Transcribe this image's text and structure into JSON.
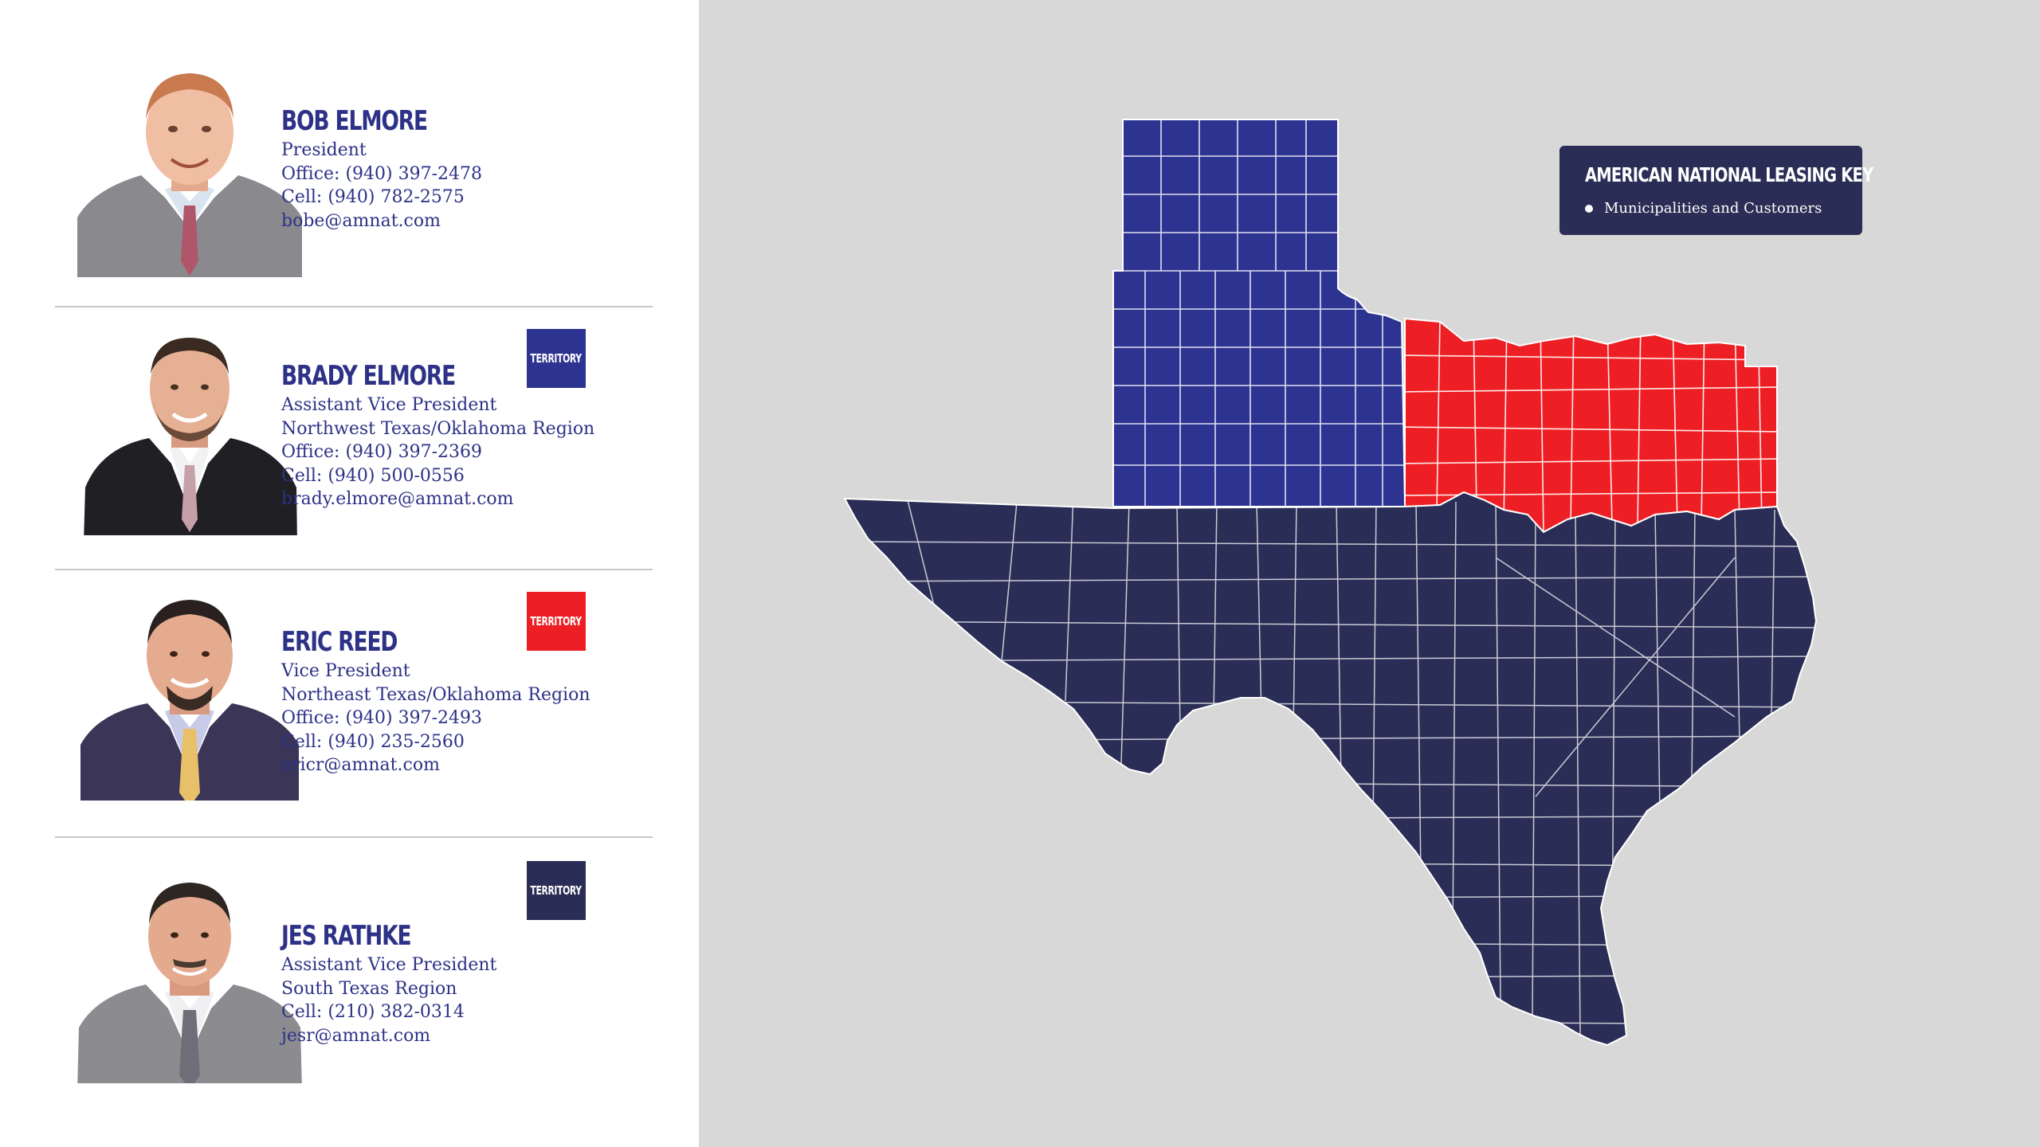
{
  "people": [
    {
      "name": "BOB ELMORE",
      "lines": [
        "President",
        "Office: (940) 397-2478",
        "Cell: (940) 782-2575",
        "bobe@amnat.com"
      ],
      "badge": null
    },
    {
      "name": "BRADY ELMORE",
      "lines": [
        "Assistant Vice President",
        "Northwest Texas/Oklahoma Region",
        "Office: (940) 397-2369",
        "Cell: (940) 500-0556",
        "brady.elmore@amnat.com"
      ],
      "badge": {
        "label": "TERRITORY",
        "color": "#2d3391"
      }
    },
    {
      "name": "ERIC REED",
      "lines": [
        "Vice President",
        "Northeast Texas/Oklahoma Region",
        "Office: (940) 397-2493",
        "Cell: (940) 235-2560",
        "ericr@amnat.com"
      ],
      "badge": {
        "label": "TERRITORY",
        "color": "#ee1f24"
      }
    },
    {
      "name": "JES RATHKE",
      "lines": [
        "Assistant Vice President",
        "South Texas Region",
        "Cell: (210) 382-0314",
        "jesr@amnat.com"
      ],
      "badge": {
        "label": "TERRITORY",
        "color": "#2a2d55"
      }
    }
  ],
  "legend": {
    "title": "AMERICAN NATIONAL LEASING KEY",
    "item": "Municipalities and Customers"
  },
  "colors": {
    "accent_text": "#2d3287",
    "northwest_region": "#2d3391",
    "northeast_region": "#ee1f24",
    "south_region": "#2a2d55",
    "map_background": "#d8d8d8"
  }
}
